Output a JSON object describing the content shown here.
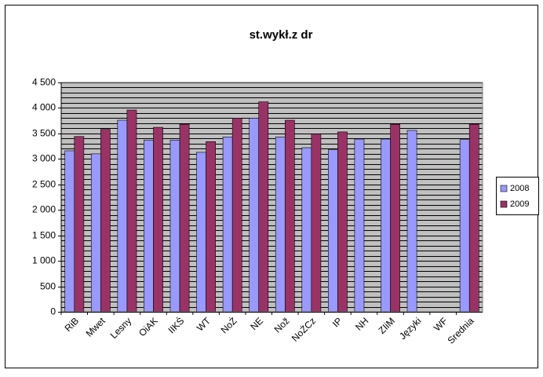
{
  "chart_data": {
    "type": "bar",
    "title": "st.wykł.z dr",
    "categories": [
      "RiB",
      "Mwet",
      "Lesny",
      "OiAK",
      "IIKŚ",
      "WT",
      "NoŻ",
      "NE",
      "Nož",
      "NoŻCz",
      "IP",
      "NH",
      "ZIiM",
      "Języki",
      "WF",
      "Srednia"
    ],
    "series": [
      {
        "name": "2008",
        "color": "#9999ff",
        "values": [
          3160,
          3100,
          3760,
          3370,
          3370,
          3130,
          3430,
          3800,
          3430,
          3220,
          3180,
          3390,
          3390,
          3560,
          null,
          3380
        ]
      },
      {
        "name": "2009",
        "color": "#993366",
        "values": [
          3440,
          3580,
          3960,
          3620,
          3680,
          3340,
          3800,
          4120,
          3760,
          3490,
          3530,
          null,
          3680,
          null,
          null,
          3680
        ]
      }
    ],
    "ylim": [
      0,
      4500
    ],
    "yticks": [
      0,
      500,
      {
        "value": 1000,
        "label": "1 000"
      },
      {
        "value": 1500,
        "label": "1 500"
      },
      {
        "value": 2000,
        "label": "2 000"
      },
      {
        "value": 2500,
        "label": "2 500"
      },
      {
        "value": 3000,
        "label": "3 000"
      },
      {
        "value": 3500,
        "label": "3 500"
      },
      {
        "value": 4000,
        "label": "4 000"
      },
      {
        "value": 4500,
        "label": "4 500"
      }
    ],
    "minor_yticks": [
      0,
      100,
      200,
      300,
      400,
      500,
      600,
      700,
      800,
      900,
      1000,
      1100,
      1200,
      1300,
      1400,
      1500,
      1600,
      1700,
      1800,
      1900,
      2000,
      2100,
      2200,
      2300,
      2400,
      2500,
      2600,
      2700,
      2800,
      2900,
      3000,
      3100,
      3200,
      3300,
      3400,
      3500,
      3600,
      3700,
      3800,
      3900,
      4000,
      4100,
      4200,
      4300,
      4400,
      4500
    ],
    "grid": true,
    "plot_background": "#c0c0c0",
    "legend": "right"
  }
}
